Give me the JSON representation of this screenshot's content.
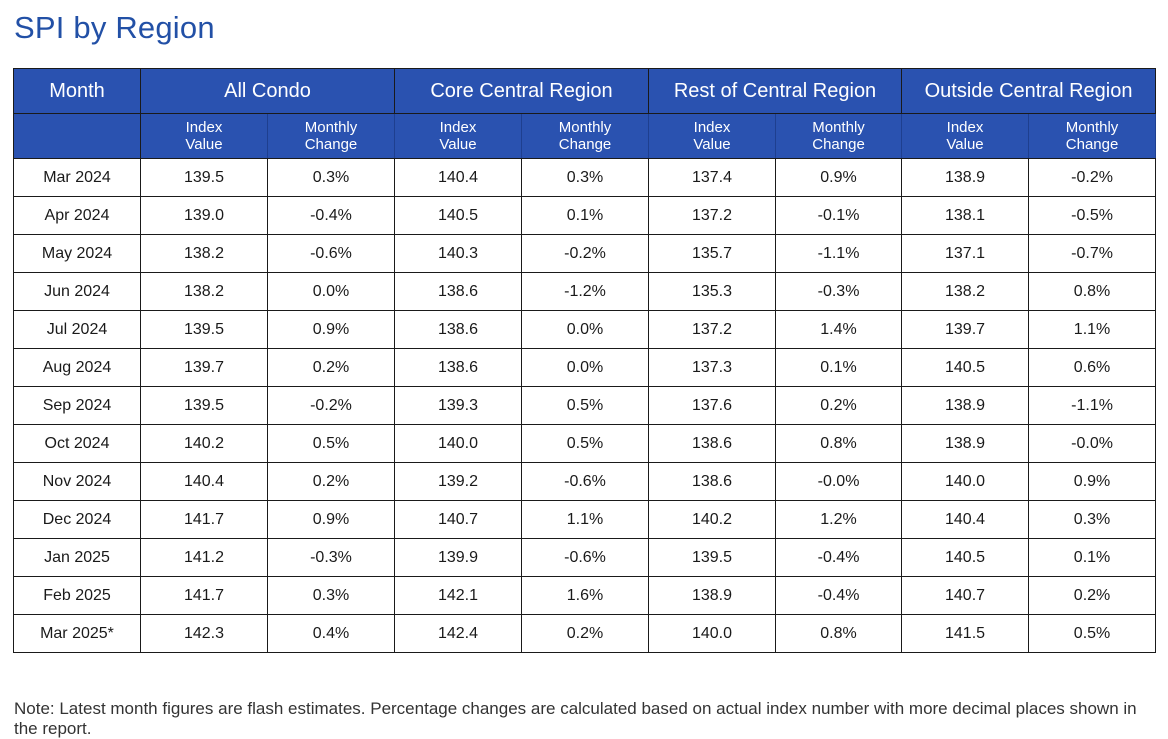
{
  "title": "SPI by Region",
  "colors": {
    "header_bg": "#2a52b0",
    "title": "#2250a6"
  },
  "table": {
    "month_header": "Month",
    "groups": [
      "All Condo",
      "Core Central Region",
      "Rest of Central Region",
      "Outside Central Region"
    ],
    "sub_headers": {
      "index": [
        "Index",
        "Value"
      ],
      "change": [
        "Monthly",
        "Change"
      ]
    },
    "rows": [
      {
        "month": "Mar 2024",
        "cells": [
          "139.5",
          "0.3%",
          "140.4",
          "0.3%",
          "137.4",
          "0.9%",
          "138.9",
          "-0.2%"
        ]
      },
      {
        "month": "Apr 2024",
        "cells": [
          "139.0",
          "-0.4%",
          "140.5",
          "0.1%",
          "137.2",
          "-0.1%",
          "138.1",
          "-0.5%"
        ]
      },
      {
        "month": "May 2024",
        "cells": [
          "138.2",
          "-0.6%",
          "140.3",
          "-0.2%",
          "135.7",
          "-1.1%",
          "137.1",
          "-0.7%"
        ]
      },
      {
        "month": "Jun 2024",
        "cells": [
          "138.2",
          "0.0%",
          "138.6",
          "-1.2%",
          "135.3",
          "-0.3%",
          "138.2",
          "0.8%"
        ]
      },
      {
        "month": "Jul 2024",
        "cells": [
          "139.5",
          "0.9%",
          "138.6",
          "0.0%",
          "137.2",
          "1.4%",
          "139.7",
          "1.1%"
        ]
      },
      {
        "month": "Aug 2024",
        "cells": [
          "139.7",
          "0.2%",
          "138.6",
          "0.0%",
          "137.3",
          "0.1%",
          "140.5",
          "0.6%"
        ]
      },
      {
        "month": "Sep 2024",
        "cells": [
          "139.5",
          "-0.2%",
          "139.3",
          "0.5%",
          "137.6",
          "0.2%",
          "138.9",
          "-1.1%"
        ]
      },
      {
        "month": "Oct 2024",
        "cells": [
          "140.2",
          "0.5%",
          "140.0",
          "0.5%",
          "138.6",
          "0.8%",
          "138.9",
          "-0.0%"
        ]
      },
      {
        "month": "Nov 2024",
        "cells": [
          "140.4",
          "0.2%",
          "139.2",
          "-0.6%",
          "138.6",
          "-0.0%",
          "140.0",
          "0.9%"
        ]
      },
      {
        "month": "Dec 2024",
        "cells": [
          "141.7",
          "0.9%",
          "140.7",
          "1.1%",
          "140.2",
          "1.2%",
          "140.4",
          "0.3%"
        ]
      },
      {
        "month": "Jan 2025",
        "cells": [
          "141.2",
          "-0.3%",
          "139.9",
          "-0.6%",
          "139.5",
          "-0.4%",
          "140.5",
          "0.1%"
        ]
      },
      {
        "month": "Feb 2025",
        "cells": [
          "141.7",
          "0.3%",
          "142.1",
          "1.6%",
          "138.9",
          "-0.4%",
          "140.7",
          "0.2%"
        ]
      },
      {
        "month": "Mar 2025*",
        "cells": [
          "142.3",
          "0.4%",
          "142.4",
          "0.2%",
          "140.0",
          "0.8%",
          "141.5",
          "0.5%"
        ]
      }
    ]
  },
  "note": "Note: Latest month figures are flash estimates. Percentage changes are calculated based on actual index number with more decimal places shown in the report."
}
